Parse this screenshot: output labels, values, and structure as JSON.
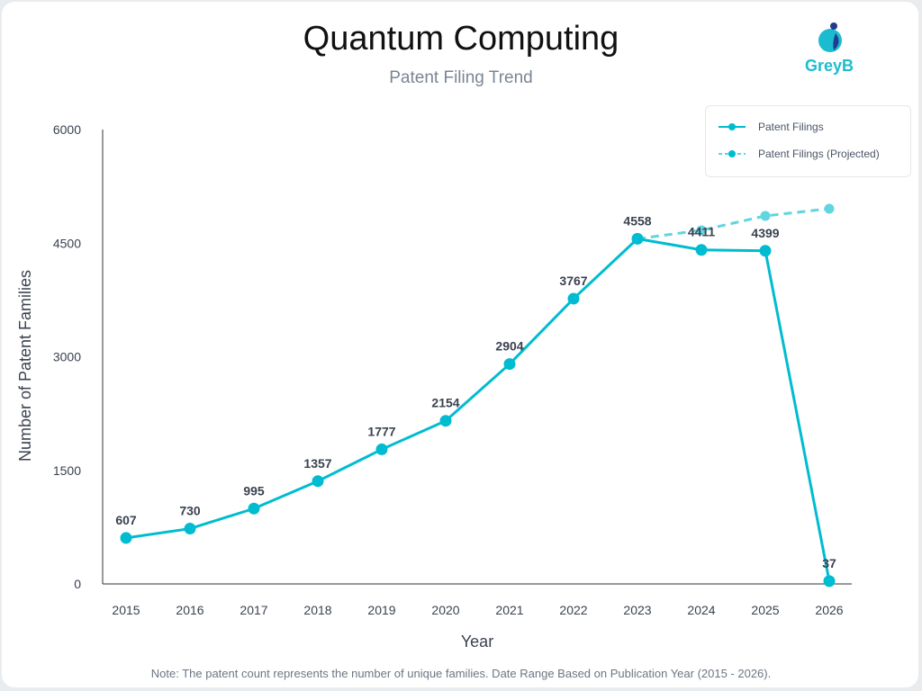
{
  "header": {
    "title": "Quantum Computing",
    "subtitle": "Patent Filing Trend",
    "logo_text": "GreyB"
  },
  "note": "Note: The patent count represents the number of unique families. Date Range Based on Publication Year (2015 - 2026).",
  "colors": {
    "series": "#00bcd0",
    "projected": "#5fd6e0",
    "axis": "#333333",
    "label": "#3a4250"
  },
  "chart_data": {
    "type": "line",
    "title": "Quantum Computing",
    "subtitle": "Patent Filing Trend",
    "xlabel": "Year",
    "ylabel": "Number of Patent Families",
    "ylim": [
      0,
      6000
    ],
    "yticks": [
      0,
      1500,
      3000,
      4500,
      6000
    ],
    "grid": false,
    "legend_position": "top-right",
    "categories": [
      "2015",
      "2016",
      "2017",
      "2018",
      "2019",
      "2020",
      "2021",
      "2022",
      "2023",
      "2024",
      "2025",
      "2026"
    ],
    "series": [
      {
        "name": "Patent Filings",
        "style": "solid",
        "values": [
          607,
          730,
          995,
          1357,
          1777,
          2154,
          2904,
          3767,
          4558,
          4411,
          4399,
          37
        ]
      },
      {
        "name": "Patent Filings (Projected)",
        "style": "dashed",
        "values": [
          null,
          null,
          null,
          null,
          null,
          null,
          null,
          null,
          4558,
          4670,
          4860,
          4955
        ]
      }
    ]
  }
}
